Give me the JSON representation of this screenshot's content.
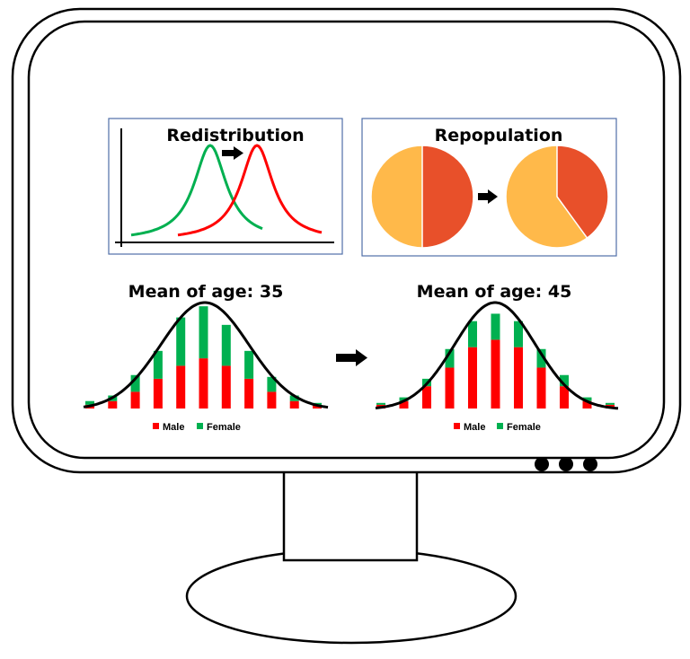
{
  "colors": {
    "male": "#ff0000",
    "female": "#00b050",
    "before_curve": "#00b050",
    "after_curve": "#ff0000",
    "pie_major": "#ffb94a",
    "pie_minor": "#e8502a",
    "panel_border": "#4f6fa8",
    "outline": "#000000"
  },
  "icons": {
    "monitor": "monitor-icon",
    "arrow": "arrow-right-icon"
  },
  "redistribution": {
    "title": "Redistribution"
  },
  "repopulation": {
    "title": "Repopulation",
    "before_minor_fraction": 0.5,
    "after_minor_fraction": 0.4
  },
  "chart_data": [
    {
      "type": "bar",
      "title": "Mean of age: 35",
      "stacked": true,
      "series": [
        {
          "name": "Male",
          "values": [
            2,
            4,
            9,
            16,
            23,
            27,
            23,
            16,
            9,
            4,
            2
          ]
        },
        {
          "name": "Female",
          "values": [
            2,
            3,
            9,
            15,
            26,
            28,
            22,
            15,
            8,
            3,
            1
          ]
        }
      ],
      "legend": "bottom-center"
    },
    {
      "type": "bar",
      "title": "Mean of age: 45",
      "stacked": true,
      "series": [
        {
          "name": "Male",
          "values": [
            2,
            4,
            12,
            22,
            33,
            37,
            33,
            22,
            12,
            4,
            2
          ]
        },
        {
          "name": "Female",
          "values": [
            1,
            2,
            4,
            10,
            14,
            14,
            14,
            10,
            6,
            2,
            1
          ]
        }
      ],
      "legend": "bottom-center"
    }
  ]
}
